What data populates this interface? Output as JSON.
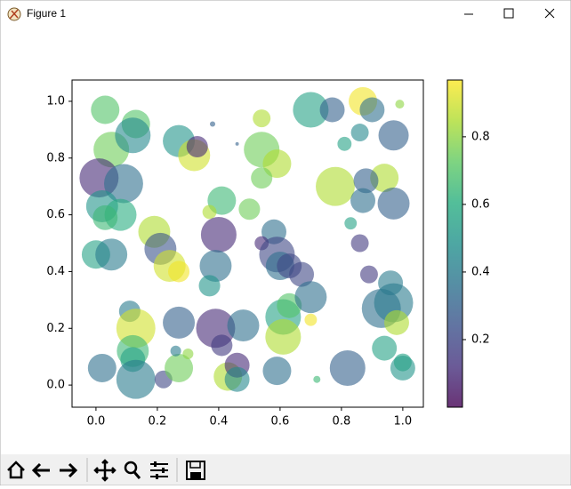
{
  "window": {
    "title": "Figure 1"
  },
  "chart_data": {
    "type": "scatter",
    "x": [
      0.03,
      0.05,
      0.13,
      0.12,
      0.01,
      0.09,
      0.02,
      0.08,
      0.03,
      0.0,
      0.05,
      0.19,
      0.21,
      0.24,
      0.27,
      0.11,
      0.13,
      0.12,
      0.12,
      0.13,
      0.02,
      0.22,
      0.27,
      0.27,
      0.26,
      0.3,
      0.27,
      0.32,
      0.33,
      0.38,
      0.46,
      0.41,
      0.37,
      0.4,
      0.39,
      0.37,
      0.39,
      0.41,
      0.43,
      0.46,
      0.46,
      0.48,
      0.5,
      0.54,
      0.54,
      0.59,
      0.54,
      0.58,
      0.54,
      0.59,
      0.6,
      0.61,
      0.61,
      0.59,
      0.63,
      0.63,
      0.67,
      0.7,
      0.7,
      0.77,
      0.78,
      0.81,
      0.83,
      0.86,
      0.86,
      0.89,
      0.82,
      0.7,
      0.72,
      0.87,
      0.9,
      0.99,
      0.97,
      0.94,
      0.88,
      0.87,
      0.97,
      0.96,
      0.93,
      0.97,
      0.98,
      0.94,
      1.0,
      1.0
    ],
    "y": [
      0.97,
      0.83,
      0.92,
      0.88,
      0.73,
      0.71,
      0.63,
      0.6,
      0.59,
      0.46,
      0.46,
      0.54,
      0.48,
      0.42,
      0.4,
      0.26,
      0.2,
      0.12,
      0.09,
      0.02,
      0.06,
      0.02,
      0.06,
      0.22,
      0.12,
      0.11,
      0.86,
      0.81,
      0.84,
      0.92,
      0.85,
      0.65,
      0.61,
      0.53,
      0.42,
      0.35,
      0.2,
      0.14,
      0.03,
      0.07,
      0.02,
      0.21,
      0.62,
      0.94,
      0.83,
      0.78,
      0.73,
      0.54,
      0.5,
      0.46,
      0.42,
      0.24,
      0.17,
      0.05,
      0.28,
      0.42,
      0.39,
      0.31,
      0.97,
      0.97,
      0.7,
      0.85,
      0.57,
      0.5,
      0.89,
      0.39,
      0.06,
      0.23,
      0.02,
      1.0,
      0.97,
      0.99,
      0.88,
      0.73,
      0.72,
      0.65,
      0.64,
      0.36,
      0.27,
      0.29,
      0.22,
      0.13,
      0.06,
      0.08
    ],
    "sizes": [
      530,
      830,
      530,
      830,
      1000,
      1000,
      670,
      670,
      405,
      530,
      670,
      670,
      670,
      670,
      300,
      300,
      1000,
      670,
      405,
      1000,
      530,
      207,
      530,
      670,
      75,
      75,
      670,
      670,
      300,
      19,
      8,
      530,
      130,
      830,
      670,
      300,
      1000,
      300,
      530,
      405,
      405,
      670,
      300,
      207,
      830,
      530,
      300,
      405,
      130,
      830,
      530,
      830,
      830,
      530,
      405,
      405,
      405,
      670,
      830,
      405,
      1000,
      130,
      100,
      207,
      207,
      207,
      830,
      100,
      33,
      530,
      405,
      52,
      600,
      530,
      405,
      405,
      670,
      405,
      1000,
      1000,
      405,
      405,
      405,
      207
    ],
    "c": [
      0.7,
      0.75,
      0.7,
      0.45,
      0.1,
      0.35,
      0.5,
      0.6,
      0.65,
      0.55,
      0.4,
      0.85,
      0.25,
      0.9,
      0.95,
      0.4,
      0.9,
      0.65,
      0.55,
      0.4,
      0.35,
      0.2,
      0.75,
      0.3,
      0.4,
      0.8,
      0.5,
      0.9,
      0.1,
      0.3,
      0.3,
      0.65,
      0.85,
      0.1,
      0.35,
      0.5,
      0.1,
      0.15,
      0.85,
      0.1,
      0.45,
      0.35,
      0.75,
      0.85,
      0.75,
      0.85,
      0.75,
      0.35,
      0.1,
      0.2,
      0.35,
      0.55,
      0.85,
      0.35,
      0.7,
      0.2,
      0.2,
      0.35,
      0.55,
      0.3,
      0.85,
      0.55,
      0.55,
      0.15,
      0.45,
      0.15,
      0.3,
      0.95,
      0.65,
      0.95,
      0.35,
      0.8,
      0.3,
      0.85,
      0.3,
      0.35,
      0.3,
      0.4,
      0.35,
      0.4,
      0.85,
      0.55,
      0.5,
      0.55
    ],
    "colormap": "viridis",
    "alpha": 0.6,
    "xlim": [
      -0.078,
      1.067
    ],
    "ylim": [
      -0.078,
      1.075
    ],
    "xticks": [
      {
        "value": 0,
        "label": "0.0"
      },
      {
        "value": 0.2,
        "label": "0.2"
      },
      {
        "value": 0.4,
        "label": "0.4"
      },
      {
        "value": 0.6,
        "label": "0.6"
      },
      {
        "value": 0.8,
        "label": "0.8"
      },
      {
        "value": 1,
        "label": "1.0"
      }
    ],
    "yticks": [
      {
        "value": 0,
        "label": "0.0"
      },
      {
        "value": 0.2,
        "label": "0.2"
      },
      {
        "value": 0.4,
        "label": "0.4"
      },
      {
        "value": 0.6,
        "label": "0.6"
      },
      {
        "value": 0.8,
        "label": "0.8"
      },
      {
        "value": 1,
        "label": "1.0"
      }
    ],
    "colorbar": {
      "clim": [
        0.0,
        0.968
      ],
      "ticks": [
        0.2,
        0.4,
        0.6,
        0.8
      ]
    }
  }
}
